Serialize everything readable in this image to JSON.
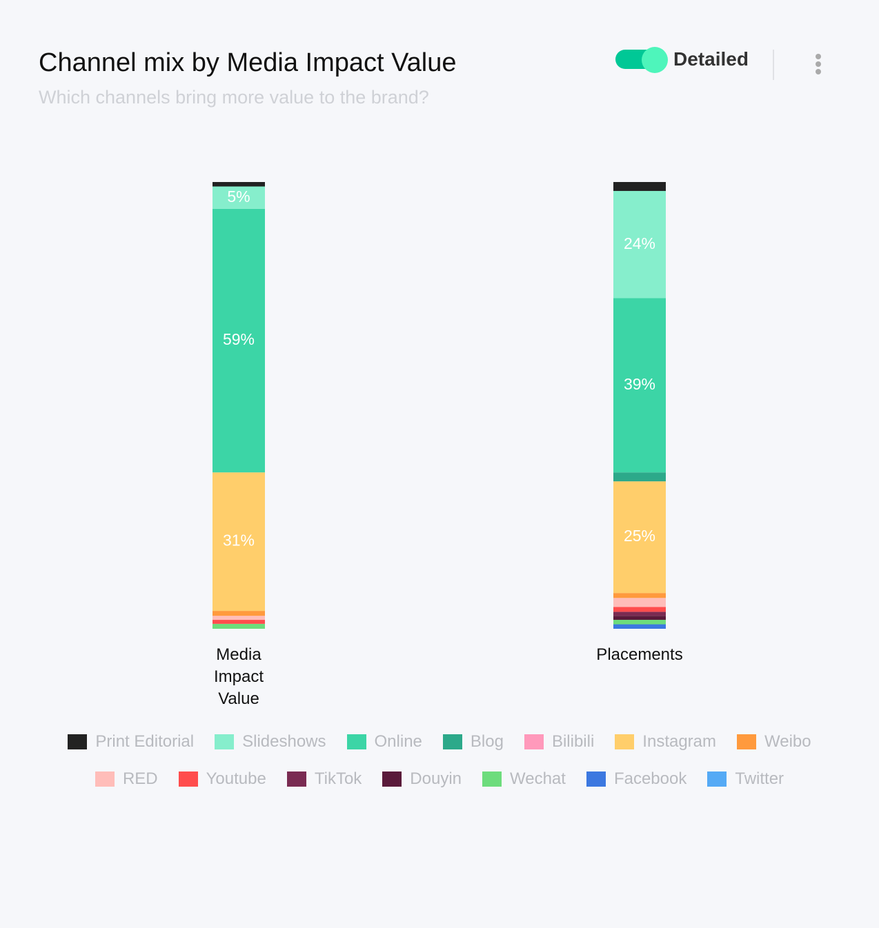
{
  "header": {
    "title": "Channel mix by Media Impact Value",
    "subtitle": "Which channels bring more value to the brand?",
    "toggle_label": "Detailed"
  },
  "chart_data": {
    "type": "stacked_bar_100",
    "categories": [
      "Media Impact Value",
      "Placements"
    ],
    "ylim": [
      0,
      100
    ],
    "series": [
      {
        "name": "Print Editorial",
        "color": "#222222",
        "values": [
          1,
          2
        ]
      },
      {
        "name": "Slideshows",
        "color": "#86eecc",
        "values": [
          5,
          24
        ],
        "value_labels": [
          "5%",
          "24%"
        ]
      },
      {
        "name": "Online",
        "color": "#3cd5a6",
        "values": [
          59,
          39
        ],
        "value_labels": [
          "59%",
          "39%"
        ]
      },
      {
        "name": "Blog",
        "color": "#2ca98a",
        "values": [
          0,
          2
        ]
      },
      {
        "name": "Bilibili",
        "color": "#ff99bb",
        "values": [
          0,
          0
        ]
      },
      {
        "name": "Instagram",
        "color": "#ffce6b",
        "values": [
          31,
          25
        ],
        "value_labels": [
          "31%",
          "25%"
        ]
      },
      {
        "name": "Weibo",
        "color": "#ff9a3d",
        "values": [
          1.1,
          1.1
        ]
      },
      {
        "name": "RED",
        "color": "#ffbdb9",
        "values": [
          0.9,
          2
        ]
      },
      {
        "name": "Youtube",
        "color": "#ff4d4d",
        "values": [
          0.9,
          1.1
        ]
      },
      {
        "name": "TikTok",
        "color": "#7a2b52",
        "values": [
          0,
          0.9
        ]
      },
      {
        "name": "Douyin",
        "color": "#5a1a3a",
        "values": [
          0,
          0.9
        ]
      },
      {
        "name": "Wechat",
        "color": "#6ddc7c",
        "values": [
          1.1,
          1
        ]
      },
      {
        "name": "Facebook",
        "color": "#3c78e0",
        "values": [
          0,
          1
        ]
      },
      {
        "name": "Twitter",
        "color": "#55aaf5",
        "values": [
          0,
          0
        ]
      }
    ]
  }
}
